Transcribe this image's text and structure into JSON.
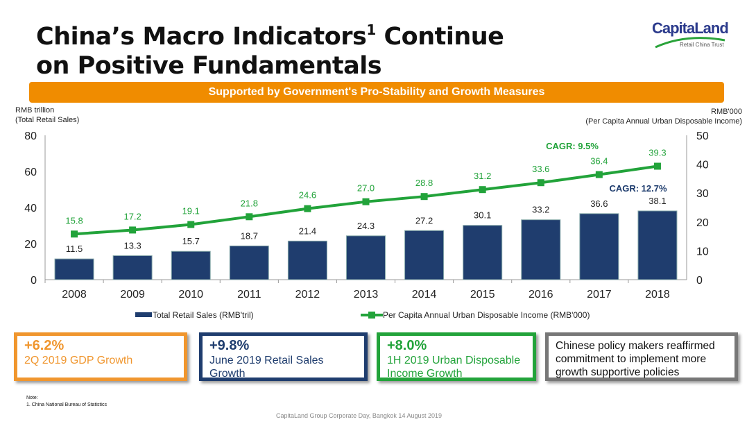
{
  "title": {
    "line1": "China’s Macro Indicators",
    "sup": "1",
    "line1b": " Continue",
    "line2": "on Positive Fundamentals"
  },
  "logo": {
    "name": "CapitaLand",
    "sub": "Retail China Trust"
  },
  "banner": "Supported by Government's Pro-Stability and Growth Measures",
  "colors": {
    "bar": "#1f3d6e",
    "line": "#22a33a",
    "orange": "#f0962e",
    "navy": "#1f3d6e",
    "green": "#22a33a",
    "gray": "#777777"
  },
  "chart_data": {
    "type": "bar+line",
    "categories": [
      "2008",
      "2009",
      "2010",
      "2011",
      "2012",
      "2013",
      "2014",
      "2015",
      "2016",
      "2017",
      "2018"
    ],
    "series": [
      {
        "name": "Total Retail Sales (RMB'tril)",
        "type": "bar",
        "axis": "left",
        "values": [
          11.5,
          13.3,
          15.7,
          18.7,
          21.4,
          24.3,
          27.2,
          30.1,
          33.2,
          36.6,
          38.1
        ]
      },
      {
        "name": "Per Capita Annual Urban Disposable Income (RMB'000)",
        "type": "line",
        "axis": "right",
        "values": [
          15.8,
          17.2,
          19.1,
          21.8,
          24.6,
          27.0,
          28.8,
          31.2,
          33.6,
          36.4,
          39.3
        ]
      }
    ],
    "left_axis": {
      "label1": "RMB trillion",
      "label2": "(Total Retail Sales)",
      "ylim": [
        0,
        80
      ],
      "ticks": [
        "0",
        "20",
        "40",
        "60",
        "80"
      ]
    },
    "right_axis": {
      "label1": "RMB'000",
      "label2": "(Per Capita Annual Urban Disposable Income)",
      "ylim": [
        0,
        50
      ],
      "ticks": [
        "0",
        "10",
        "20",
        "30",
        "40",
        "50"
      ]
    },
    "annotations": [
      "CAGR: 9.5%",
      "CAGR: 12.7%"
    ],
    "legend_position": "bottom"
  },
  "boxes": [
    {
      "value": "+6.2%",
      "text": "2Q 2019 GDP Growth"
    },
    {
      "value": "+9.8%",
      "text": "June 2019 Retail Sales Growth"
    },
    {
      "value": "+8.0%",
      "text": "1H 2019 Urban Disposable Income Growth"
    },
    {
      "value": "",
      "text": "Chinese policy makers reaffirmed commitment to implement more growth supportive policies"
    }
  ],
  "note": {
    "label": "Note:",
    "item": "1.    China National Bureau of Statistics"
  },
  "footer": "CapitaLand Group Corporate Day, Bangkok 14 August 2019"
}
